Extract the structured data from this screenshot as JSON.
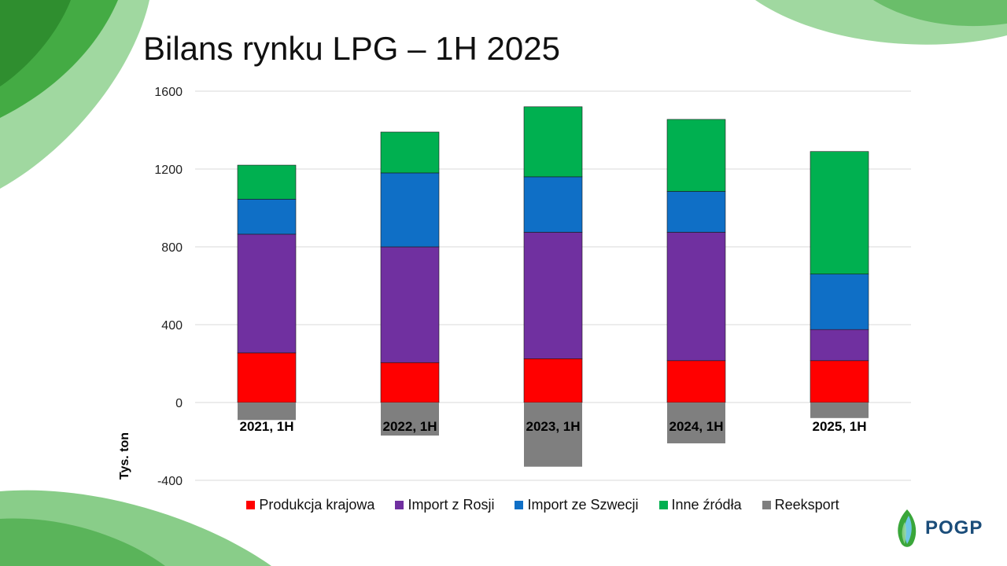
{
  "slide": {
    "title": "Bilans rynku LPG – 1H 2025"
  },
  "logo": {
    "text": "POGP"
  },
  "colors": {
    "produkcja": "#ff0000",
    "rosja": "#7030a0",
    "szwecja": "#0f6fc6",
    "inne": "#00b050",
    "reeksport": "#7f7f7f",
    "deco_green": "#5cb85c"
  },
  "chart_data": {
    "type": "bar",
    "stacked": true,
    "title": "",
    "xlabel": "",
    "ylabel": "Tys. ton",
    "ylim": [
      -400,
      1600
    ],
    "yticks": [
      -400,
      0,
      400,
      800,
      1200,
      1600
    ],
    "grid": true,
    "legend_position": "bottom",
    "categories": [
      "2021, 1H",
      "2022, 1H",
      "2023, 1H",
      "2024, 1H",
      "2025, 1H"
    ],
    "series": [
      {
        "name": "Produkcja krajowa",
        "color": "#ff0000",
        "values": [
          255,
          205,
          225,
          215,
          215
        ]
      },
      {
        "name": "Import z Rosji",
        "color": "#7030a0",
        "values": [
          610,
          595,
          650,
          660,
          160
        ]
      },
      {
        "name": "Import ze Szwecji",
        "color": "#0f6fc6",
        "values": [
          180,
          380,
          285,
          210,
          285
        ]
      },
      {
        "name": "Inne źródła",
        "color": "#00b050",
        "values": [
          175,
          210,
          360,
          370,
          630
        ]
      },
      {
        "name": "Reeksport",
        "color": "#7f7f7f",
        "values": [
          -90,
          -170,
          -330,
          -210,
          -80
        ]
      }
    ]
  }
}
